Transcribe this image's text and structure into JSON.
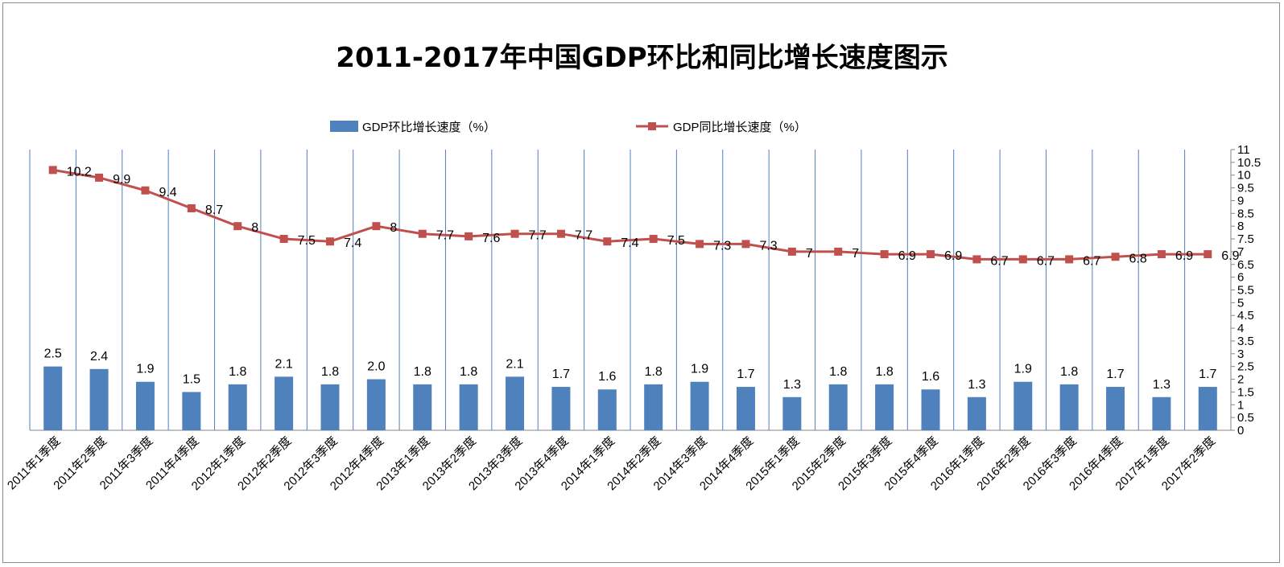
{
  "chart_data": {
    "type": "bar",
    "title": "2011-2017年中国GDP环比和同比增长速度图示",
    "categories": [
      "2011年1季度",
      "2011年2季度",
      "2011年3季度",
      "2011年4季度",
      "2012年1季度",
      "2012年2季度",
      "2012年3季度",
      "2012年4季度",
      "2013年1季度",
      "2013年2季度",
      "2013年3季度",
      "2013年4季度",
      "2014年1季度",
      "2014年2季度",
      "2014年3季度",
      "2014年4季度",
      "2015年1季度",
      "2015年2季度",
      "2015年3季度",
      "2015年4季度",
      "2016年1季度",
      "2016年2季度",
      "2016年3季度",
      "2016年4季度",
      "2017年1季度",
      "2017年2季度"
    ],
    "series": [
      {
        "name": "GDP环比增长速度（%）",
        "type": "bar",
        "color": "#4f81bd",
        "values": [
          2.5,
          2.4,
          1.9,
          1.5,
          1.8,
          2.1,
          1.8,
          2.0,
          1.8,
          1.8,
          2.1,
          1.7,
          1.6,
          1.8,
          1.9,
          1.7,
          1.3,
          1.8,
          1.8,
          1.6,
          1.3,
          1.9,
          1.8,
          1.7,
          1.3,
          1.7
        ],
        "labels": [
          "2.5",
          "2.4",
          "1.9",
          "1.5",
          "1.8",
          "2.1",
          "1.8",
          "2.0",
          "1.8",
          "1.8",
          "2.1",
          "1.7",
          "1.6",
          "1.8",
          "1.9",
          "1.7",
          "1.3",
          "1.8",
          "1.8",
          "1.6",
          "1.3",
          "1.9",
          "1.8",
          "1.7",
          "1.3",
          "1.7"
        ]
      },
      {
        "name": "GDP同比增长速度（%）",
        "type": "line",
        "color": "#c0504d",
        "values": [
          10.2,
          9.9,
          9.4,
          8.7,
          8,
          7.5,
          7.4,
          8,
          7.7,
          7.6,
          7.7,
          7.7,
          7.4,
          7.5,
          7.3,
          7.3,
          7,
          7,
          6.9,
          6.9,
          6.7,
          6.7,
          6.7,
          6.8,
          6.9,
          6.9
        ],
        "labels": [
          "10.2",
          "9.9",
          "9.4",
          "8.7",
          "8",
          "7.5",
          "7.4",
          "8",
          "7.7",
          "7.6",
          "7.7",
          "7.7",
          "7.4",
          "7.5",
          "7.3",
          "7.3",
          "7",
          "7",
          "6.9",
          "6.9",
          "6.7",
          "6.7",
          "6.7",
          "6.8",
          "6.9",
          "6.9"
        ]
      }
    ],
    "y_axis": {
      "position": "right",
      "ylim": [
        0,
        11
      ],
      "ticks": [
        "0",
        "0.5",
        "1",
        "1.5",
        "2",
        "2.5",
        "3",
        "3.5",
        "4",
        "4.5",
        "5",
        "5.5",
        "6",
        "6.5",
        "7",
        "7.5",
        "8",
        "8.5",
        "9",
        "9.5",
        "10",
        "10.5",
        "11"
      ]
    },
    "grid": "vertical",
    "legend": "top"
  }
}
